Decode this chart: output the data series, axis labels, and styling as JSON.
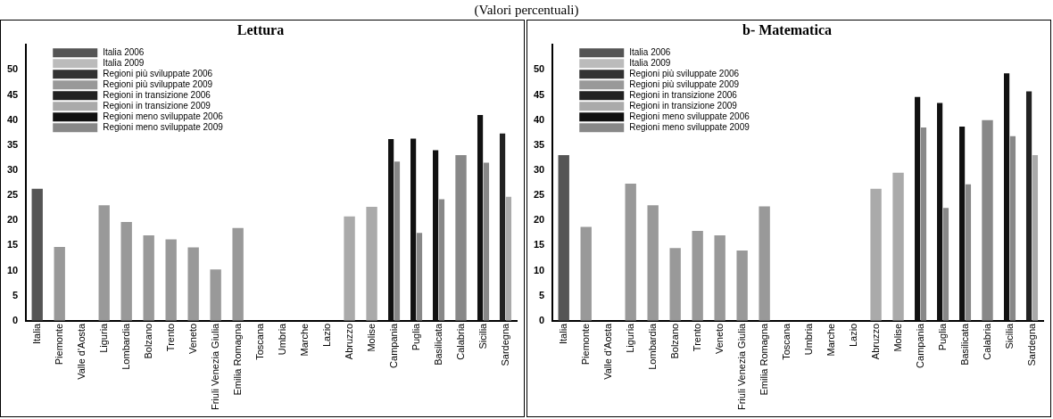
{
  "chart_data": [
    {
      "type": "bar",
      "title": "Lettura",
      "subtitle": "(Valori percentuali)",
      "categories": [
        "Italia",
        "Piemonte",
        "Valle d'Aosta",
        "Liguria",
        "Lombardia",
        "Bolzano",
        "Trento",
        "Veneto",
        "Friuli Venezia Giulia",
        "Emilia Romagna",
        "Toscana",
        "Umbria",
        "Marche",
        "Lazio",
        "Abruzzo",
        "Molise",
        "Campania",
        "Puglia",
        "Basilicata",
        "Calabria",
        "Sicilia",
        "Sardegna"
      ],
      "series": [
        {
          "name": "Italia 2006",
          "color": "#555555",
          "values": [
            26.3,
            null,
            null,
            null,
            null,
            null,
            null,
            null,
            null,
            null,
            null,
            null,
            null,
            null,
            null,
            null,
            null,
            null,
            null,
            null,
            null,
            null
          ]
        },
        {
          "name": "Italia 2009",
          "color": "#bbbbbb",
          "values": [
            null,
            null,
            null,
            null,
            null,
            null,
            null,
            null,
            null,
            null,
            null,
            null,
            null,
            null,
            null,
            null,
            null,
            null,
            null,
            null,
            null,
            null
          ]
        },
        {
          "name": "Regioni più sviluppate 2006",
          "color": "#333333",
          "values": [
            null,
            null,
            null,
            null,
            null,
            null,
            null,
            null,
            null,
            null,
            null,
            null,
            null,
            null,
            null,
            null,
            null,
            null,
            null,
            null,
            null,
            null
          ]
        },
        {
          "name": "Regioni più sviluppate 2009",
          "color": "#999999",
          "values": [
            null,
            14.7,
            null,
            23,
            19.7,
            17,
            16.2,
            14.6,
            10.2,
            18.5,
            null,
            null,
            null,
            null,
            null,
            null,
            null,
            null,
            null,
            null,
            null,
            null
          ]
        },
        {
          "name": "Regioni in transizione 2006",
          "color": "#222222",
          "values": [
            null,
            null,
            null,
            null,
            null,
            null,
            null,
            null,
            null,
            null,
            null,
            null,
            null,
            null,
            null,
            null,
            null,
            null,
            null,
            null,
            null,
            37.3
          ]
        },
        {
          "name": "Regioni in transizione 2009",
          "color": "#aaaaaa",
          "values": [
            null,
            null,
            null,
            null,
            null,
            null,
            null,
            null,
            null,
            null,
            null,
            null,
            null,
            null,
            20.8,
            22.7,
            null,
            null,
            null,
            null,
            null,
            24.7
          ]
        },
        {
          "name": "Regioni meno sviluppate 2006",
          "color": "#111111",
          "values": [
            null,
            null,
            null,
            null,
            null,
            null,
            null,
            null,
            null,
            null,
            null,
            null,
            null,
            null,
            null,
            null,
            36.2,
            36.3,
            34,
            null,
            41,
            null
          ]
        },
        {
          "name": "Regioni meno sviluppate 2009",
          "color": "#888888",
          "values": [
            null,
            null,
            null,
            null,
            null,
            null,
            null,
            null,
            null,
            null,
            null,
            null,
            null,
            null,
            null,
            null,
            31.7,
            17.5,
            24.2,
            33,
            31.5,
            null
          ]
        }
      ],
      "ylim": [
        0,
        55
      ],
      "yticks": [
        0,
        5,
        10,
        15,
        20,
        25,
        30,
        35,
        40,
        45,
        50
      ],
      "grid": false,
      "legend": "top left"
    },
    {
      "type": "bar",
      "title": "b- Matematica",
      "categories": [
        "Italia",
        "Piemonte",
        "Valle d'Aosta",
        "Liguria",
        "Lombardia",
        "Bolzano",
        "Trento",
        "Veneto",
        "Friuli Venezia Giulia",
        "Emilia Romagna",
        "Toscana",
        "Umbria",
        "Marche",
        "Lazio",
        "Abruzzo",
        "Molise",
        "Campania",
        "Puglia",
        "Basilicata",
        "Calabria",
        "Sicilia",
        "Sardegna"
      ],
      "series": [
        {
          "name": "Italia 2006",
          "color": "#555555",
          "values": [
            33,
            null,
            null,
            null,
            null,
            null,
            null,
            null,
            null,
            null,
            null,
            null,
            null,
            null,
            null,
            null,
            null,
            null,
            null,
            null,
            null,
            null
          ]
        },
        {
          "name": "Italia 2009",
          "color": "#bbbbbb",
          "values": [
            null,
            null,
            null,
            null,
            null,
            null,
            null,
            null,
            null,
            null,
            null,
            null,
            null,
            null,
            null,
            null,
            null,
            null,
            null,
            null,
            null,
            null
          ]
        },
        {
          "name": "Regioni più sviluppate 2006",
          "color": "#333333",
          "values": [
            null,
            null,
            null,
            null,
            null,
            null,
            null,
            null,
            null,
            null,
            null,
            null,
            null,
            null,
            null,
            null,
            null,
            null,
            null,
            null,
            null,
            null
          ]
        },
        {
          "name": "Regioni più sviluppate 2009",
          "color": "#999999",
          "values": [
            null,
            18.7,
            null,
            27.3,
            23,
            14.5,
            17.9,
            17,
            14,
            22.8,
            null,
            null,
            null,
            null,
            null,
            null,
            null,
            null,
            null,
            null,
            null,
            null
          ]
        },
        {
          "name": "Regioni in transizione 2006",
          "color": "#222222",
          "values": [
            null,
            null,
            null,
            null,
            null,
            null,
            null,
            null,
            null,
            null,
            null,
            null,
            null,
            null,
            null,
            null,
            null,
            null,
            null,
            null,
            null,
            45.7
          ]
        },
        {
          "name": "Regioni in transizione 2009",
          "color": "#aaaaaa",
          "values": [
            null,
            null,
            null,
            null,
            null,
            null,
            null,
            null,
            null,
            null,
            null,
            null,
            null,
            null,
            26.3,
            29.5,
            null,
            null,
            null,
            null,
            null,
            33
          ]
        },
        {
          "name": "Regioni meno sviluppate 2006",
          "color": "#111111",
          "values": [
            null,
            null,
            null,
            null,
            null,
            null,
            null,
            null,
            null,
            null,
            null,
            null,
            null,
            null,
            null,
            null,
            44.6,
            43.4,
            38.7,
            null,
            49.3,
            null
          ]
        },
        {
          "name": "Regioni meno sviluppate 2009",
          "color": "#888888",
          "values": [
            null,
            null,
            null,
            null,
            null,
            null,
            null,
            null,
            null,
            null,
            null,
            null,
            null,
            null,
            null,
            null,
            38.5,
            22.5,
            27.2,
            40,
            36.8,
            null
          ]
        }
      ],
      "ylim": [
        0,
        55
      ],
      "yticks": [
        0,
        5,
        10,
        15,
        20,
        25,
        30,
        35,
        40,
        45,
        50
      ],
      "grid": false,
      "legend": "top left"
    }
  ]
}
